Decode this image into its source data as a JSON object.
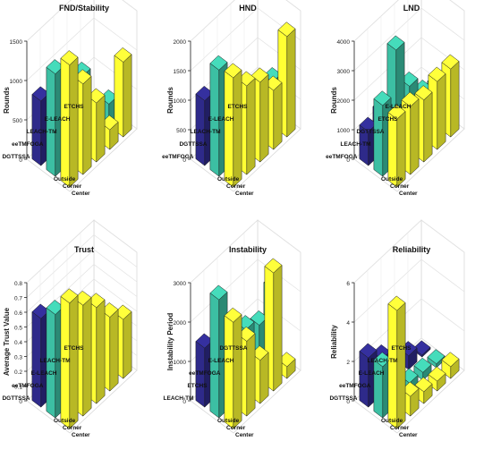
{
  "colors": {
    "Outside": "#2e2a8a",
    "Corner": "#3cbfa3",
    "Center": "#ffff33"
  },
  "chart_data": [
    {
      "type": "bar3d",
      "title": "FND/Stability",
      "ylabel": "Rounds",
      "yticks": [
        "0",
        "500",
        "1000",
        "1500"
      ],
      "ylim": [
        0,
        1500
      ],
      "categories": [
        "DGTTSSA",
        "eeTMFOGA",
        "LEACH-TM",
        "E-LEACH",
        "ETCHS"
      ],
      "series_labels": [
        "Center",
        "Corner",
        "Outside"
      ],
      "series": [
        {
          "name": "Outside",
          "values": [
            820,
            600,
            320,
            160,
            60
          ]
        },
        {
          "name": "Corner",
          "values": [
            1300,
            1000,
            950,
            400,
            280
          ]
        },
        {
          "name": "Center",
          "values": [
            1550,
            1150,
            750,
            250,
            950
          ]
        }
      ]
    },
    {
      "type": "bar3d",
      "title": "HND",
      "ylabel": "Rounds",
      "yticks": [
        "0",
        "500",
        "1000",
        "1500",
        "2000"
      ],
      "ylim": [
        0,
        2000
      ],
      "categories": [
        "eeTMFOGA",
        "DGTTSSA",
        "LEACH-TM",
        "E-LEACH",
        "ETCHS"
      ],
      "series_labels": [
        "Center",
        "Corner",
        "Outside"
      ],
      "series": [
        {
          "name": "Outside",
          "values": [
            1100,
            700,
            500,
            300,
            150
          ]
        },
        {
          "name": "Corner",
          "values": [
            1800,
            1400,
            1000,
            850,
            750
          ]
        },
        {
          "name": "Center",
          "values": [
            1850,
            1500,
            1350,
            1000,
            1700
          ]
        }
      ]
    },
    {
      "type": "bar3d",
      "title": "LND",
      "ylabel": "Rounds",
      "yticks": [
        "0",
        "1000",
        "2000",
        "3000",
        "4000"
      ],
      "ylim": [
        0,
        4000
      ],
      "categories": [
        "eeTMFOGA",
        "LEACH-TM",
        "DGTTSSA",
        "ETCHS",
        "E-LEACH"
      ],
      "series_labels": [
        "Center",
        "Corner",
        "Outside"
      ],
      "series": [
        {
          "name": "Outside",
          "values": [
            1150,
            1350,
            800,
            600,
            400
          ]
        },
        {
          "name": "Corner",
          "values": [
            2400,
            3850,
            2200,
            1500,
            1300
          ]
        },
        {
          "name": "Center",
          "values": [
            2300,
            2300,
            2100,
            2300,
            2300
          ]
        }
      ]
    },
    {
      "type": "bar3d",
      "title": "Trust",
      "ylabel": "Average Trust Value",
      "yticks": [
        "0",
        "0.1",
        "0.2",
        "0.3",
        "0.4",
        "0.5",
        "0.6",
        "0.7",
        "0.8"
      ],
      "ylim": [
        0,
        0.8
      ],
      "categories": [
        "DGTTSSA",
        "eeTMFOGA",
        "E-LEACH",
        "LEACH-TM",
        "ETCHS"
      ],
      "series_labels": [
        "Center",
        "Corner",
        "Outside"
      ],
      "series": [
        {
          "name": "Outside",
          "values": [
            0.6,
            0.5,
            0.4,
            0.3,
            0.15
          ]
        },
        {
          "name": "Corner",
          "values": [
            0.7,
            0.55,
            0.45,
            0.3,
            0.25
          ]
        },
        {
          "name": "Center",
          "values": [
            0.85,
            0.75,
            0.65,
            0.5,
            0.4
          ]
        }
      ]
    },
    {
      "type": "bar3d",
      "title": "Instability",
      "ylabel": "Instability Period",
      "yticks": [
        "0",
        "1000",
        "2000",
        "3000"
      ],
      "ylim": [
        0,
        3000
      ],
      "categories": [
        "LEACH-TM",
        "ETCHS",
        "eeTMFOGA",
        "E-LEACH",
        "DGTTSSA"
      ],
      "series_labels": [
        "Center",
        "Corner",
        "Outside"
      ],
      "series": [
        {
          "name": "Outside",
          "values": [
            1500,
            1100,
            800,
            600,
            350
          ]
        },
        {
          "name": "Corner",
          "values": [
            3000,
            2000,
            1600,
            1400,
            2000
          ]
        },
        {
          "name": "Center",
          "values": [
            2700,
            1900,
            1100,
            3000,
            300
          ]
        }
      ]
    },
    {
      "type": "bar3d",
      "title": "Reliability",
      "ylabel": "Reliability",
      "yticks": [
        "0",
        "2",
        "4",
        "6"
      ],
      "ylim": [
        0,
        6
      ],
      "categories": [
        "DGTTSSA",
        "eeTMFOGA",
        "E-LEACH",
        "LEACH-TM",
        "ETCHS"
      ],
      "series_labels": [
        "Center",
        "Corner",
        "Outside"
      ],
      "series": [
        {
          "name": "Outside",
          "values": [
            2.5,
            1.8,
            1.0,
            0.7,
            0.1
          ]
        },
        {
          "name": "Corner",
          "values": [
            2.6,
            0.7,
            0.5,
            0.4,
            0.2
          ]
        },
        {
          "name": "Center",
          "values": [
            6.0,
            1.0,
            0.6,
            0.5,
            0.6
          ]
        }
      ]
    }
  ]
}
